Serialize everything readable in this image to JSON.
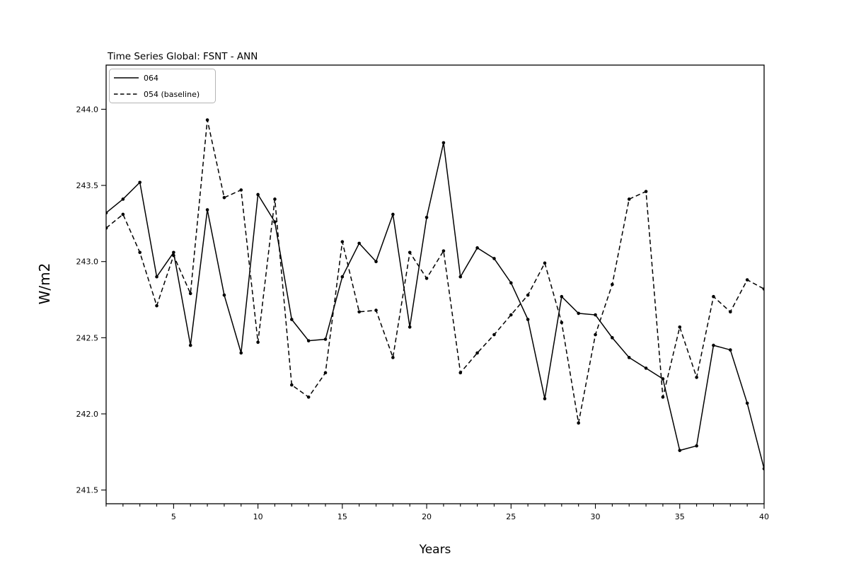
{
  "chart_data": {
    "type": "line",
    "title": "Time Series Global: FSNT - ANN",
    "xlabel": "Years",
    "ylabel": "W/m2",
    "x": [
      1,
      2,
      3,
      4,
      5,
      6,
      7,
      8,
      9,
      10,
      11,
      12,
      13,
      14,
      15,
      16,
      17,
      18,
      19,
      20,
      21,
      22,
      23,
      24,
      25,
      26,
      27,
      28,
      29,
      30,
      31,
      32,
      33,
      34,
      35,
      36,
      37,
      38,
      39,
      40
    ],
    "series": [
      {
        "name": "064",
        "line_style": "solid",
        "color": "#000000",
        "values": [
          243.32,
          243.41,
          243.52,
          242.9,
          243.06,
          242.45,
          243.34,
          242.78,
          242.4,
          243.44,
          243.26,
          242.62,
          242.48,
          242.49,
          242.9,
          243.12,
          243.0,
          243.31,
          242.57,
          243.29,
          243.78,
          242.9,
          243.09,
          243.02,
          242.86,
          242.62,
          242.1,
          242.77,
          242.66,
          242.65,
          242.5,
          242.37,
          242.3,
          242.23,
          241.76,
          241.79,
          242.45,
          242.42,
          242.07,
          241.64
        ]
      },
      {
        "name": "054 (baseline)",
        "line_style": "dashed",
        "color": "#000000",
        "values": [
          243.22,
          243.31,
          243.06,
          242.71,
          243.04,
          242.79,
          243.93,
          243.42,
          243.47,
          242.47,
          243.41,
          242.19,
          242.11,
          242.27,
          243.13,
          242.67,
          242.68,
          242.37,
          243.06,
          242.89,
          243.07,
          242.27,
          242.4,
          242.52,
          242.65,
          242.78,
          242.99,
          242.6,
          241.94,
          242.52,
          242.85,
          243.41,
          243.46,
          242.11,
          242.57,
          242.24,
          242.77,
          242.67,
          242.88,
          242.82
        ]
      }
    ],
    "xlim": [
      1,
      40
    ],
    "ylim": [
      241.41,
      244.29
    ],
    "xticks": [
      5,
      10,
      15,
      20,
      25,
      30,
      35,
      40
    ],
    "x_minor_ticks_every": 1,
    "yticks": [
      241.5,
      242.0,
      242.5,
      243.0,
      243.5,
      244.0
    ],
    "ytick_decimals": 1,
    "grid": false,
    "legend_position": "upper-left",
    "marker": "dot"
  }
}
